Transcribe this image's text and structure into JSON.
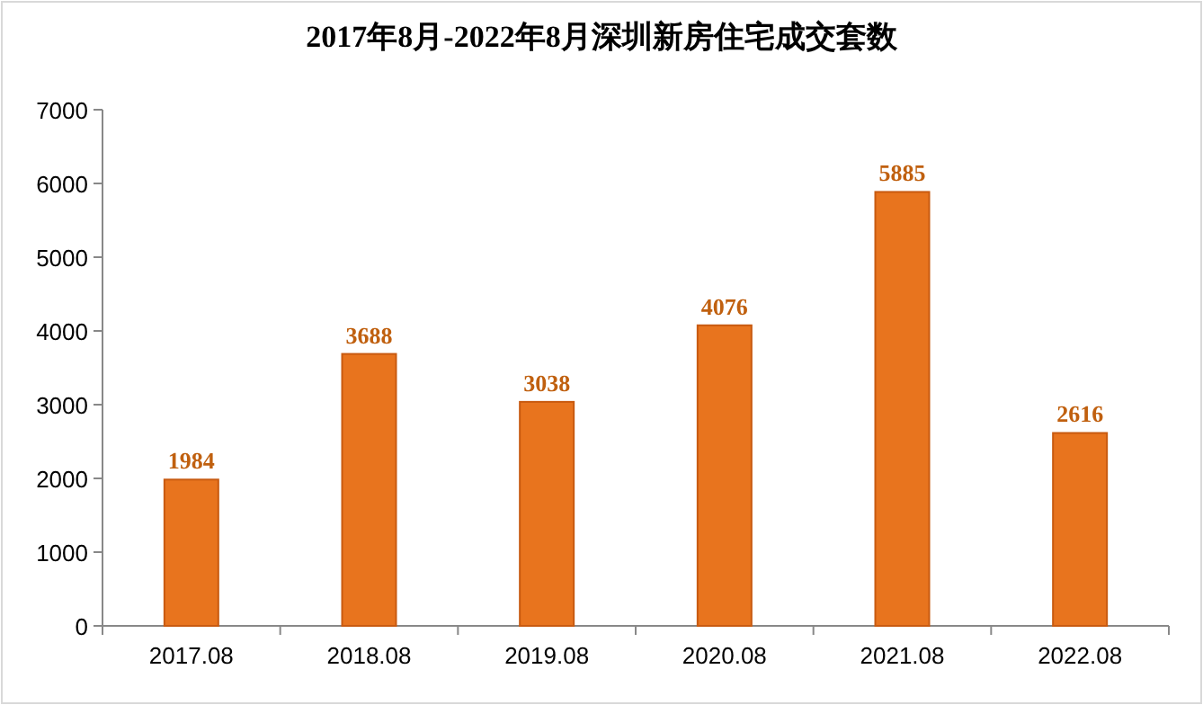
{
  "chart_data": {
    "type": "bar",
    "title": "2017年8月-2022年8月深圳新房住宅成交套数",
    "categories": [
      "2017.08",
      "2018.08",
      "2019.08",
      "2020.08",
      "2021.08",
      "2022.08"
    ],
    "values": [
      1984,
      3688,
      3038,
      4076,
      5885,
      2616
    ],
    "color": "#e8741e",
    "ylim": [
      0,
      7000
    ],
    "yticks": [
      0,
      1000,
      2000,
      3000,
      4000,
      5000,
      6000,
      7000
    ],
    "data_labels": true
  }
}
